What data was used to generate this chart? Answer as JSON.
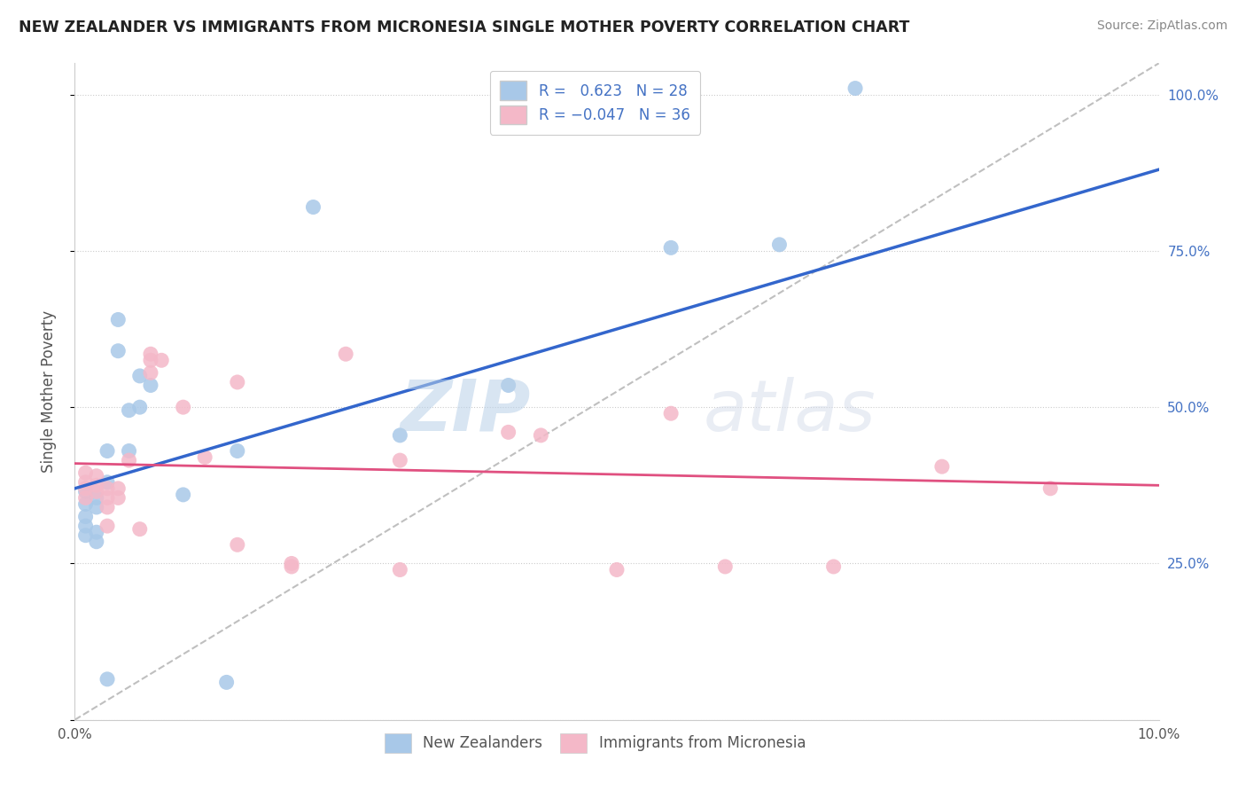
{
  "title": "NEW ZEALANDER VS IMMIGRANTS FROM MICRONESIA SINGLE MOTHER POVERTY CORRELATION CHART",
  "source": "Source: ZipAtlas.com",
  "xlabel": "",
  "ylabel": "Single Mother Poverty",
  "r_nz": 0.623,
  "n_nz": 28,
  "r_micro": -0.047,
  "n_micro": 36,
  "blue_color": "#a8c8e8",
  "pink_color": "#f4b8c8",
  "blue_line_color": "#3366cc",
  "pink_line_color": "#e05080",
  "watermark_zip": "ZIP",
  "watermark_atlas": "atlas",
  "xmin": 0.0,
  "xmax": 0.1,
  "ymin": 0.0,
  "ymax": 1.05,
  "nz_points": [
    [
      0.001,
      0.365
    ],
    [
      0.001,
      0.345
    ],
    [
      0.001,
      0.325
    ],
    [
      0.001,
      0.31
    ],
    [
      0.001,
      0.295
    ],
    [
      0.002,
      0.355
    ],
    [
      0.002,
      0.34
    ],
    [
      0.002,
      0.3
    ],
    [
      0.002,
      0.285
    ],
    [
      0.003,
      0.43
    ],
    [
      0.003,
      0.38
    ],
    [
      0.004,
      0.64
    ],
    [
      0.004,
      0.59
    ],
    [
      0.005,
      0.495
    ],
    [
      0.005,
      0.43
    ],
    [
      0.006,
      0.55
    ],
    [
      0.006,
      0.5
    ],
    [
      0.007,
      0.535
    ],
    [
      0.01,
      0.36
    ],
    [
      0.015,
      0.43
    ],
    [
      0.022,
      0.82
    ],
    [
      0.03,
      0.455
    ],
    [
      0.04,
      0.535
    ],
    [
      0.055,
      0.755
    ],
    [
      0.065,
      0.76
    ],
    [
      0.014,
      0.06
    ],
    [
      0.003,
      0.065
    ],
    [
      0.072,
      1.01
    ]
  ],
  "micro_points": [
    [
      0.001,
      0.395
    ],
    [
      0.001,
      0.38
    ],
    [
      0.001,
      0.37
    ],
    [
      0.001,
      0.355
    ],
    [
      0.002,
      0.39
    ],
    [
      0.002,
      0.375
    ],
    [
      0.002,
      0.365
    ],
    [
      0.003,
      0.37
    ],
    [
      0.003,
      0.355
    ],
    [
      0.003,
      0.34
    ],
    [
      0.003,
      0.31
    ],
    [
      0.004,
      0.37
    ],
    [
      0.004,
      0.355
    ],
    [
      0.005,
      0.415
    ],
    [
      0.006,
      0.305
    ],
    [
      0.007,
      0.585
    ],
    [
      0.007,
      0.575
    ],
    [
      0.007,
      0.555
    ],
    [
      0.008,
      0.575
    ],
    [
      0.01,
      0.5
    ],
    [
      0.012,
      0.42
    ],
    [
      0.015,
      0.54
    ],
    [
      0.015,
      0.28
    ],
    [
      0.02,
      0.25
    ],
    [
      0.02,
      0.245
    ],
    [
      0.025,
      0.585
    ],
    [
      0.03,
      0.415
    ],
    [
      0.03,
      0.24
    ],
    [
      0.04,
      0.46
    ],
    [
      0.043,
      0.455
    ],
    [
      0.05,
      0.24
    ],
    [
      0.055,
      0.49
    ],
    [
      0.06,
      0.245
    ],
    [
      0.07,
      0.245
    ],
    [
      0.08,
      0.405
    ],
    [
      0.09,
      0.37
    ]
  ],
  "blue_line": [
    0.0,
    0.37,
    0.1,
    0.88
  ],
  "pink_line": [
    0.0,
    0.41,
    0.1,
    0.375
  ],
  "yticks": [
    0.0,
    0.25,
    0.5,
    0.75,
    1.0
  ],
  "ytick_labels_right": [
    "",
    "25.0%",
    "50.0%",
    "75.0%",
    "100.0%"
  ],
  "xticks": [
    0.0,
    0.02,
    0.04,
    0.06,
    0.08,
    0.1
  ],
  "xtick_labels": [
    "0.0%",
    "",
    "",
    "",
    "",
    "10.0%"
  ]
}
